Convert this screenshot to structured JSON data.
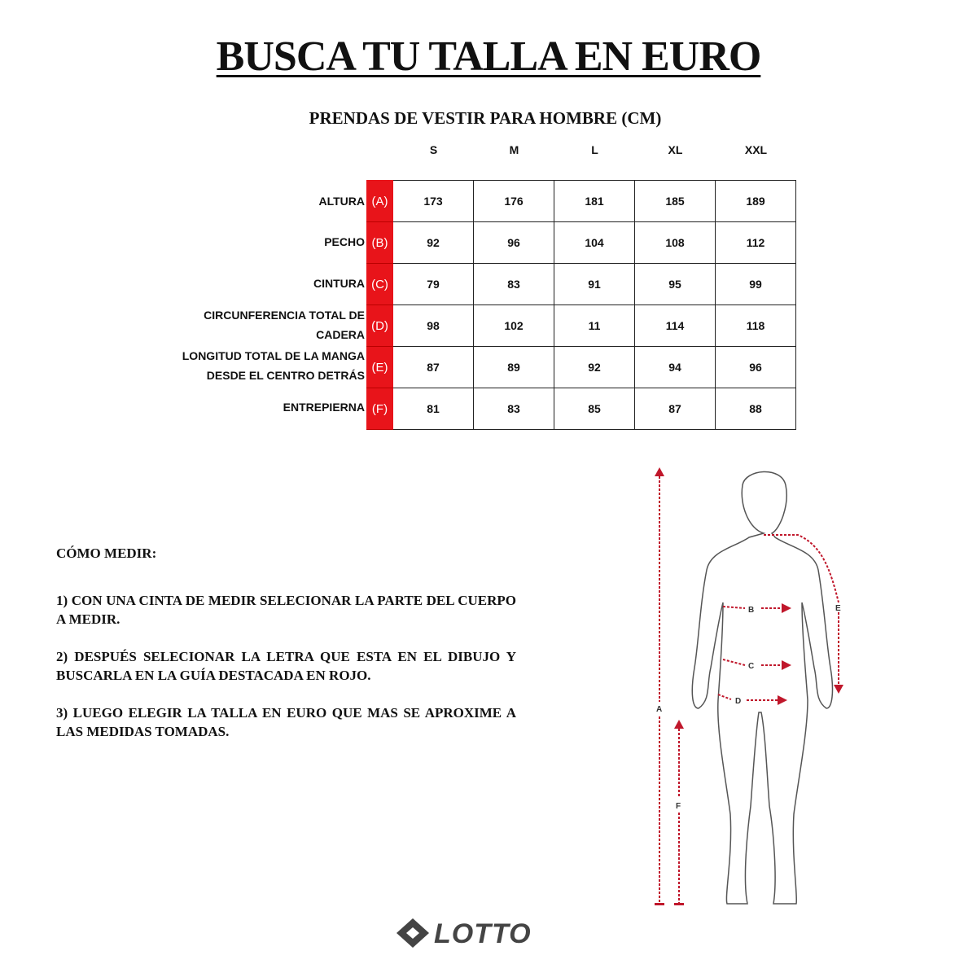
{
  "title": "BUSCA TU TALLA EN EURO",
  "subtitle": "PRENDAS DE VESTIR PARA HOMBRE (CM)",
  "sizes": [
    "S",
    "M",
    "L",
    "XL",
    "XXL"
  ],
  "rows": [
    {
      "label": [
        "ALTURA"
      ],
      "code": "(A)",
      "values": [
        "173",
        "176",
        "181",
        "185",
        "189"
      ]
    },
    {
      "label": [
        "PECHO"
      ],
      "code": "(B)",
      "values": [
        "92",
        "96",
        "104",
        "108",
        "112"
      ]
    },
    {
      "label": [
        "CINTURA"
      ],
      "code": "(C)",
      "values": [
        "79",
        "83",
        "91",
        "95",
        "99"
      ]
    },
    {
      "label": [
        "CIRCUNFERENCIA TOTAL DE",
        "CADERA"
      ],
      "code": "(D)",
      "values": [
        "98",
        "102",
        "11",
        "114",
        "118"
      ]
    },
    {
      "label": [
        "LONGITUD TOTAL DE LA MANGA",
        "DESDE EL CENTRO DETRÁS"
      ],
      "code": "(E)",
      "values": [
        "87",
        "89",
        "92",
        "94",
        "96"
      ]
    },
    {
      "label": [
        "ENTREPIERNA"
      ],
      "code": "(F)",
      "values": [
        "81",
        "83",
        "85",
        "87",
        "88"
      ]
    }
  ],
  "howto": {
    "heading": "CÓMO MEDIR:",
    "steps": [
      "1) CON UNA CINTA DE MEDIR  SELECIONAR LA PARTE DEL CUERPO  A MEDIR.",
      "2) DESPUÉS SELECIONAR LA LETRA QUE ESTA EN EL DIBUJO Y BUSCARLA EN LA GUÍA  DESTACADA EN  ROJO.",
      "3) LUEGO ELEGIR  LA TALLA EN EURO QUE MAS SE APROXIME A LAS MEDIDAS TOMADAS."
    ]
  },
  "figure": {
    "labels": [
      "A",
      "B",
      "C",
      "D",
      "E",
      "F"
    ]
  },
  "logo": "LOTTO",
  "colors": {
    "accent": "#e8141a",
    "measure": "#c0172b"
  }
}
